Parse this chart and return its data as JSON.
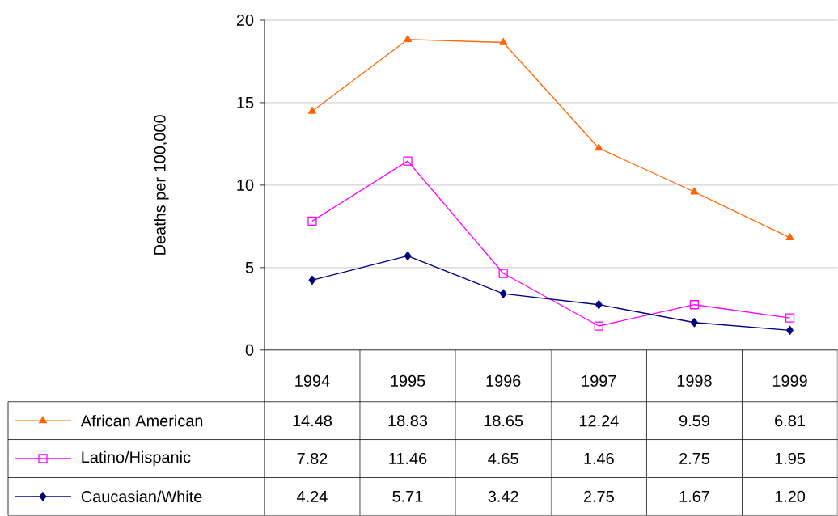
{
  "chart_data": {
    "type": "line",
    "ylabel": "Deaths per 100,000",
    "categories": [
      "1994",
      "1995",
      "1996",
      "1997",
      "1998",
      "1999"
    ],
    "ylim": [
      0,
      20
    ],
    "yticks": [
      0,
      5,
      10,
      15,
      20
    ],
    "grid": "y",
    "legend": "bottom left",
    "series": [
      {
        "name": "African American",
        "color": "#ff6600",
        "marker": "triangle",
        "values": [
          14.48,
          18.83,
          18.65,
          12.24,
          9.59,
          6.81
        ],
        "value_labels": [
          "14.48",
          "18.83",
          "18.65",
          "12.24",
          "9.59",
          "6.81"
        ]
      },
      {
        "name": "Latino/Hispanic",
        "color": "#ff00ff",
        "marker": "square",
        "values": [
          7.82,
          11.46,
          4.65,
          1.46,
          2.75,
          1.95
        ],
        "value_labels": [
          "7.82",
          "11.46",
          "4.65",
          "1.46",
          "2.75",
          "1.95"
        ]
      },
      {
        "name": "Caucasian/White",
        "color": "#000080",
        "marker": "diamond",
        "values": [
          4.24,
          5.71,
          3.42,
          2.75,
          1.67,
          1.2
        ],
        "value_labels": [
          "4.24",
          "5.71",
          "3.42",
          "2.75",
          "1.67",
          "1.20"
        ]
      }
    ]
  }
}
